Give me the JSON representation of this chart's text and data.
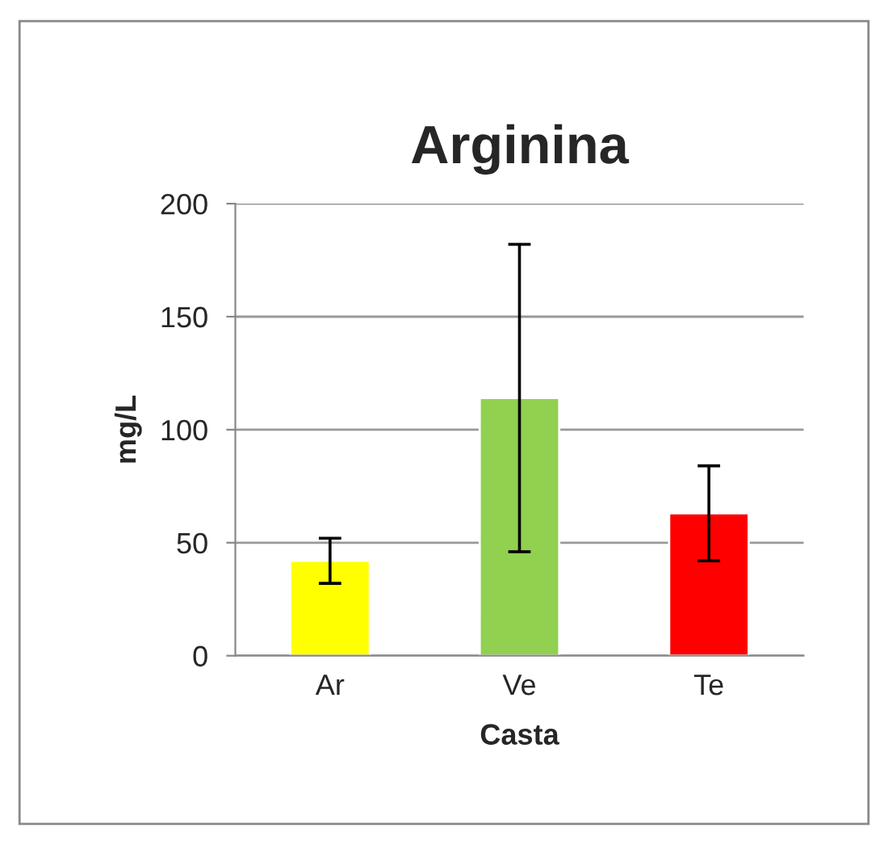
{
  "chart_data": {
    "type": "bar",
    "title": "Arginina",
    "xlabel": "Casta",
    "ylabel": "mg/L",
    "categories": [
      "Ar",
      "Ve",
      "Te"
    ],
    "values": [
      42,
      114,
      63
    ],
    "colors": [
      "#ffff00",
      "#92d050",
      "#ff0000"
    ],
    "errors": [
      10,
      68,
      21
    ],
    "ylim": [
      0,
      200
    ],
    "yticks": [
      0,
      50,
      100,
      150,
      200
    ],
    "grid": "y",
    "legend": false
  }
}
